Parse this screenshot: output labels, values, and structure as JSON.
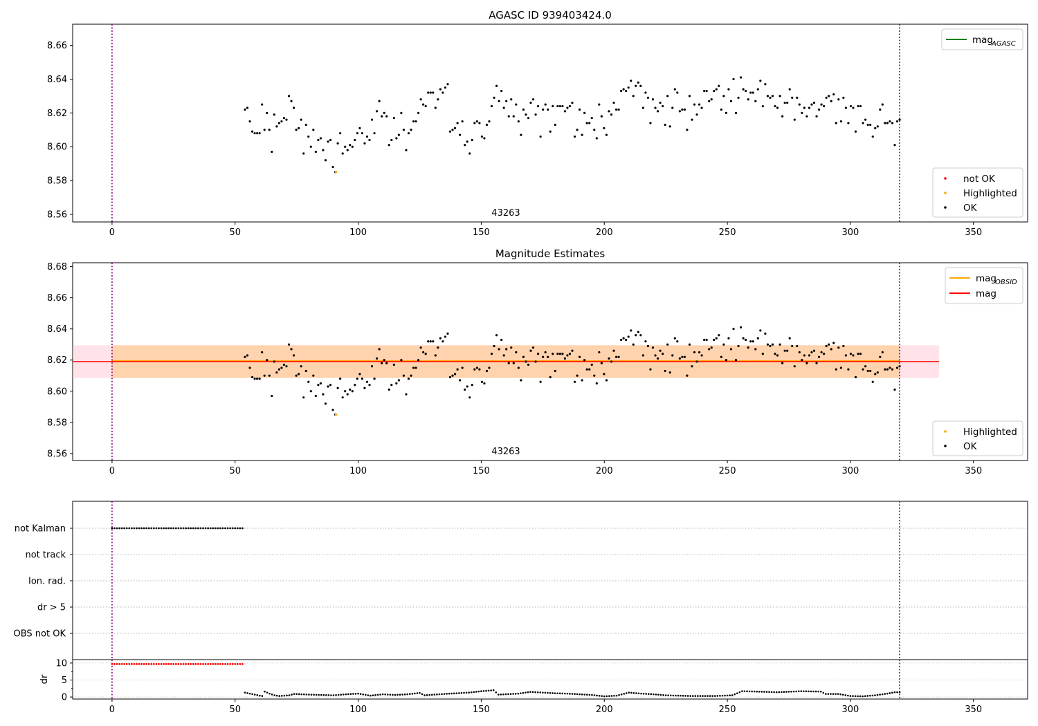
{
  "chart_data": [
    {
      "type": "scatter",
      "title": "AGASC ID 939403424.0",
      "xlim": [
        -16,
        372
      ],
      "ylim": [
        8.5555,
        8.6725
      ],
      "x_ticks": [
        0,
        50,
        100,
        150,
        200,
        250,
        300,
        350
      ],
      "y_ticks": [
        8.56,
        8.58,
        8.6,
        8.62,
        8.64,
        8.66
      ],
      "y_tick_labels": [
        "8.56",
        "8.58",
        "8.60",
        "8.62",
        "8.64",
        "8.66"
      ],
      "vlines": [
        0,
        320
      ],
      "obsid_label": "43263",
      "line_legend": [
        {
          "label": "mag",
          "sub": "AGASC",
          "color": "#008000"
        }
      ],
      "marker_legend": [
        {
          "label": "not OK",
          "color": "#ff0000"
        },
        {
          "label": "Highlighted",
          "color": "#ffa500"
        },
        {
          "label": "OK",
          "color": "#000000"
        }
      ],
      "series": [
        {
          "name": "OK",
          "color": "#000000",
          "x_start": 54,
          "x_end": 320,
          "y": [
            8.622,
            8.623,
            8.615,
            8.609,
            8.608,
            8.608,
            8.608,
            8.625,
            8.61,
            8.62,
            8.61,
            8.597,
            8.619,
            8.612,
            8.614,
            8.615,
            8.617,
            8.616,
            8.63,
            8.627,
            8.623,
            8.61,
            8.611,
            8.616,
            8.596,
            8.613,
            8.606,
            8.6,
            8.61,
            8.597,
            8.604,
            8.605,
            8.598,
            8.592,
            8.603,
            8.604,
            8.588,
            8.585,
            8.602,
            8.608,
            8.596,
            8.6,
            8.598,
            8.601,
            8.6,
            8.604,
            8.608,
            8.611,
            8.608,
            8.602,
            8.606,
            8.604,
            8.616,
            8.608,
            8.621,
            8.627,
            8.618,
            8.62,
            8.618,
            8.601,
            8.604,
            8.617,
            8.605,
            8.607,
            8.62,
            8.61,
            8.598,
            8.608,
            8.61,
            8.615,
            8.615,
            8.62,
            8.628,
            8.625,
            8.624,
            8.632,
            8.632,
            8.632,
            8.623,
            8.628,
            8.634,
            8.632,
            8.635,
            8.637,
            8.609,
            8.61,
            8.611,
            8.614,
            8.607,
            8.615,
            8.601,
            8.603,
            8.596,
            8.604,
            8.614,
            8.615,
            8.614,
            8.606,
            8.605,
            8.613,
            8.615,
            8.624,
            8.629,
            8.636,
            8.627,
            8.633,
            8.623,
            8.627,
            8.618,
            8.628,
            8.618,
            8.625,
            8.615,
            8.607,
            8.622,
            8.619,
            8.617,
            8.626,
            8.628,
            8.619,
            8.624,
            8.606,
            8.622,
            8.625,
            8.622,
            8.609,
            8.624,
            8.613,
            8.624,
            8.624,
            8.624,
            8.621,
            8.623,
            8.624,
            8.626,
            8.606,
            8.61,
            8.622,
            8.607,
            8.62,
            8.614,
            8.614,
            8.617,
            8.61,
            8.605,
            8.625,
            8.618,
            8.611,
            8.607,
            8.621,
            8.619,
            8.626,
            8.622,
            8.622,
            8.633,
            8.634,
            8.633,
            8.635,
            8.639,
            8.63,
            8.636,
            8.638,
            8.636,
            8.623,
            8.632,
            8.629,
            8.614,
            8.628,
            8.623,
            8.621,
            8.626,
            8.624,
            8.613,
            8.63,
            8.612,
            8.623,
            8.634,
            8.632,
            8.621,
            8.622,
            8.622,
            8.61,
            8.63,
            8.616,
            8.625,
            8.619,
            8.625,
            8.623,
            8.633,
            8.633,
            8.627,
            8.628,
            8.633,
            8.634,
            8.636,
            8.622,
            8.63,
            8.62,
            8.634,
            8.627,
            8.64,
            8.62,
            8.629,
            8.641,
            8.634,
            8.633,
            8.628,
            8.632,
            8.632,
            8.627,
            8.634,
            8.639,
            8.624,
            8.637,
            8.63,
            8.629,
            8.63,
            8.624,
            8.623,
            8.63,
            8.618,
            8.626,
            8.626,
            8.634,
            8.629,
            8.616,
            8.629,
            8.625,
            8.62,
            8.623,
            8.618,
            8.623,
            8.625,
            8.626,
            8.618,
            8.622,
            8.625,
            8.624,
            8.629,
            8.63,
            8.627,
            8.631,
            8.614,
            8.628,
            8.615,
            8.629,
            8.623,
            8.614,
            8.624,
            8.623,
            8.609,
            8.624,
            8.624,
            8.614,
            8.616,
            8.613,
            8.613,
            8.606,
            8.611,
            8.612,
            8.622,
            8.625,
            8.614,
            8.614,
            8.615,
            8.614,
            8.601,
            8.615,
            8.616
          ]
        },
        {
          "name": "Highlighted",
          "color": "#ffa500",
          "x": [
            91
          ],
          "y": [
            8.585
          ]
        }
      ]
    },
    {
      "type": "scatter",
      "title": "Magnitude Estimates",
      "xlim": [
        -16,
        372
      ],
      "ylim": [
        8.5555,
        8.6825
      ],
      "x_ticks": [
        0,
        50,
        100,
        150,
        200,
        250,
        300,
        350
      ],
      "y_ticks": [
        8.56,
        8.58,
        8.6,
        8.62,
        8.64,
        8.66,
        8.68
      ],
      "y_tick_labels": [
        "8.56",
        "8.58",
        "8.60",
        "8.62",
        "8.64",
        "8.66",
        "8.68"
      ],
      "vlines": [
        0,
        320
      ],
      "obsid_label": "43263",
      "bands": [
        {
          "x": [
            -16,
            336
          ],
          "y": [
            8.6085,
            8.6295
          ],
          "color": "#ffc0cb",
          "opacity": 0.45
        },
        {
          "x": [
            0,
            320
          ],
          "y": [
            8.6085,
            8.6295
          ],
          "color": "#ffa500",
          "opacity": 0.25
        }
      ],
      "hlines": [
        {
          "x": [
            0,
            320
          ],
          "y": 8.6193,
          "color": "#ffa500",
          "width": 2.4
        },
        {
          "x": [
            -16,
            336
          ],
          "y": 8.619,
          "color": "#ff0000",
          "width": 1.6
        }
      ],
      "line_legend": [
        {
          "label": "mag",
          "sub": "OBSID",
          "color": "#ffa500"
        },
        {
          "label": "mag",
          "sub": "",
          "color": "#ff0000"
        }
      ],
      "marker_legend": [
        {
          "label": "Highlighted",
          "color": "#ffa500"
        },
        {
          "label": "OK",
          "color": "#000000"
        }
      ],
      "series_ref": "same as first panel"
    },
    {
      "type": "scatter",
      "title": "",
      "xlim": [
        -16,
        372
      ],
      "vlines": [
        0,
        320
      ],
      "category_labels": [
        "not Kalman",
        "not track",
        "Ion. rad.",
        "dr > 5",
        "OBS not OK"
      ],
      "flag_series": [
        {
          "category": "not Kalman",
          "x_start": 0,
          "x_end": 53,
          "color": "#000000"
        }
      ]
    },
    {
      "type": "scatter",
      "title": "",
      "ylabel": "dr",
      "xlim": [
        -16,
        372
      ],
      "ylim": [
        -0.6,
        11
      ],
      "x_ticks": [
        0,
        50,
        100,
        150,
        200,
        250,
        300,
        350
      ],
      "y_ticks": [
        0,
        5,
        10
      ],
      "y_tick_labels": [
        "0",
        "5",
        "10"
      ],
      "vlines": [
        0,
        320
      ],
      "dr_flagged": {
        "x_start": 0,
        "x_end": 53,
        "value": 9.7,
        "color": "#ff0000"
      },
      "dr_ok": {
        "color": "#000000",
        "x_start": 54,
        "x_end": 320,
        "segments": [
          [
            54,
            1.3
          ],
          [
            56,
            1.0
          ],
          [
            58,
            0.7
          ],
          [
            60,
            0.4
          ],
          [
            61,
            0.3
          ],
          [
            62,
            1.6
          ],
          [
            64,
            1.0
          ],
          [
            66,
            0.5
          ],
          [
            68,
            0.3
          ],
          [
            70,
            0.4
          ],
          [
            72,
            0.5
          ],
          [
            74,
            0.9
          ],
          [
            80,
            0.7
          ],
          [
            90,
            0.5
          ],
          [
            95,
            0.8
          ],
          [
            100,
            1.0
          ],
          [
            105,
            0.4
          ],
          [
            110,
            0.8
          ],
          [
            115,
            0.6
          ],
          [
            120,
            0.8
          ],
          [
            125,
            1.2
          ],
          [
            127,
            0.5
          ],
          [
            135,
            0.9
          ],
          [
            140,
            1.1
          ],
          [
            145,
            1.3
          ],
          [
            150,
            1.7
          ],
          [
            155,
            2.0
          ],
          [
            157,
            0.7
          ],
          [
            165,
            1.0
          ],
          [
            170,
            1.5
          ],
          [
            175,
            1.3
          ],
          [
            180,
            1.1
          ],
          [
            185,
            1.0
          ],
          [
            190,
            0.8
          ],
          [
            195,
            0.6
          ],
          [
            200,
            0.2
          ],
          [
            205,
            0.4
          ],
          [
            210,
            1.3
          ],
          [
            215,
            1.0
          ],
          [
            220,
            0.8
          ],
          [
            225,
            0.5
          ],
          [
            230,
            0.4
          ],
          [
            235,
            0.3
          ],
          [
            245,
            0.3
          ],
          [
            252,
            0.5
          ],
          [
            256,
            1.7
          ],
          [
            262,
            1.6
          ],
          [
            270,
            1.4
          ],
          [
            280,
            1.7
          ],
          [
            288,
            1.6
          ],
          [
            290,
            0.9
          ],
          [
            295,
            0.9
          ],
          [
            300,
            0.3
          ],
          [
            305,
            0.2
          ],
          [
            310,
            0.5
          ],
          [
            315,
            1.0
          ],
          [
            318,
            1.4
          ],
          [
            320,
            1.4
          ]
        ]
      }
    }
  ]
}
